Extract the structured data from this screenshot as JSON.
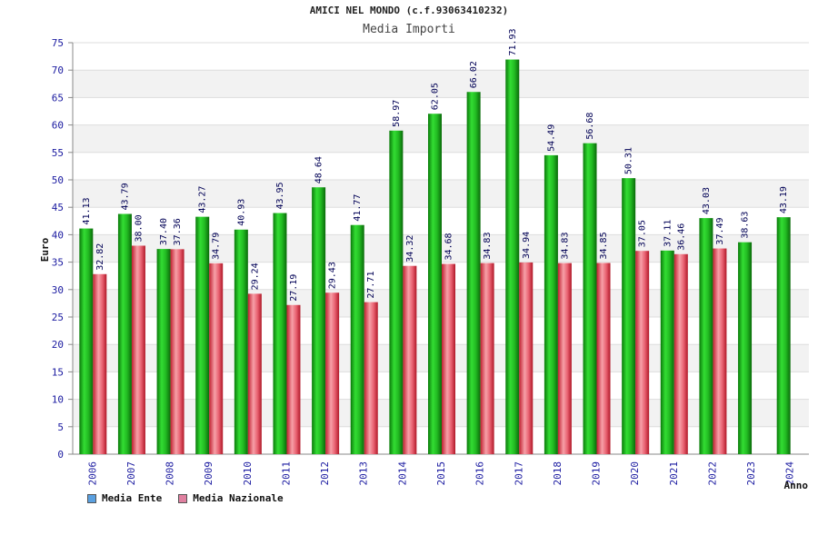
{
  "chart_data": {
    "type": "bar",
    "title": "AMICI NEL MONDO (c.f.93063410232)",
    "subtitle": "Media Importi",
    "xlabel": "Anno",
    "ylabel": "Euro",
    "ylim": [
      0,
      75
    ],
    "ytick_step": 5,
    "grid": true,
    "categories": [
      "2006",
      "2007",
      "2008",
      "2009",
      "2010",
      "2011",
      "2012",
      "2013",
      "2014",
      "2015",
      "2016",
      "2017",
      "2018",
      "2019",
      "2020",
      "2021",
      "2022",
      "2023",
      "2024"
    ],
    "series": [
      {
        "name": "Media Ente",
        "color": "#22bb22",
        "legend_color": "#5aa0e0",
        "values": [
          41.13,
          43.79,
          37.4,
          43.27,
          40.93,
          43.95,
          48.64,
          41.77,
          58.97,
          62.05,
          66.02,
          71.93,
          54.49,
          56.68,
          50.31,
          37.11,
          43.03,
          38.63,
          43.19
        ]
      },
      {
        "name": "Media Nazionale",
        "color": "#e05060",
        "legend_color": "#e080a0",
        "values": [
          32.82,
          38.0,
          37.36,
          34.79,
          29.24,
          27.19,
          29.43,
          27.71,
          34.32,
          34.68,
          34.83,
          34.94,
          34.83,
          34.85,
          37.05,
          36.46,
          37.49,
          null,
          null
        ]
      }
    ],
    "legend_position": "bottom-left"
  }
}
